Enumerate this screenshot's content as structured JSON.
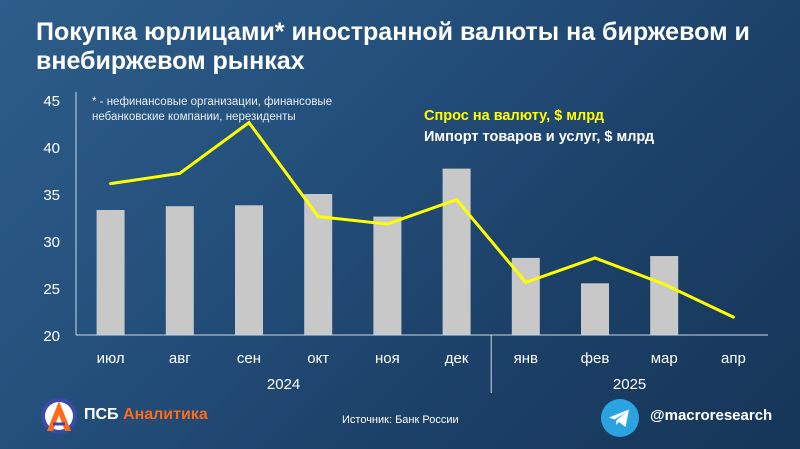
{
  "title": "Покупка юрлицами* иностранной валюты на биржевом и внебиржевом рынках",
  "footnote": "* - нефинансовые организации, финансовые небанковские компании, нерезиденты",
  "source": "Источник: Банк России",
  "brand": {
    "part1": "ПСБ",
    "part2": "Аналитика"
  },
  "telegram_handle": "@macroresearch",
  "colors": {
    "demand_line": "#ffff00",
    "import_bars": "#c8c8c8",
    "brand_accent": "#ff6a1a",
    "telegram": "#2aa3e0"
  },
  "chart_data": {
    "type": "bar",
    "categories": [
      "июл",
      "авг",
      "сен",
      "окт",
      "ноя",
      "дек",
      "янв",
      "фев",
      "мар",
      "апр"
    ],
    "year_groups": [
      {
        "label": "2024",
        "span": [
          0,
          5
        ]
      },
      {
        "label": "2025",
        "span": [
          6,
          9
        ]
      }
    ],
    "series": [
      {
        "name": "Спрос на валюту, $ млрд",
        "type": "line",
        "values": [
          36.1,
          37.2,
          42.6,
          32.6,
          31.8,
          34.4,
          25.6,
          28.2,
          25.4,
          21.9
        ]
      },
      {
        "name": "Импорт товаров и услуг, $ млрд",
        "type": "bar",
        "values": [
          33.3,
          33.7,
          33.8,
          35.0,
          32.6,
          37.7,
          28.2,
          25.5,
          28.4,
          null
        ]
      }
    ],
    "yticks": [
      "20",
      "25",
      "30",
      "35",
      "40",
      "45"
    ],
    "ylim": [
      20,
      45
    ],
    "grid": false,
    "legend": "top-right"
  }
}
